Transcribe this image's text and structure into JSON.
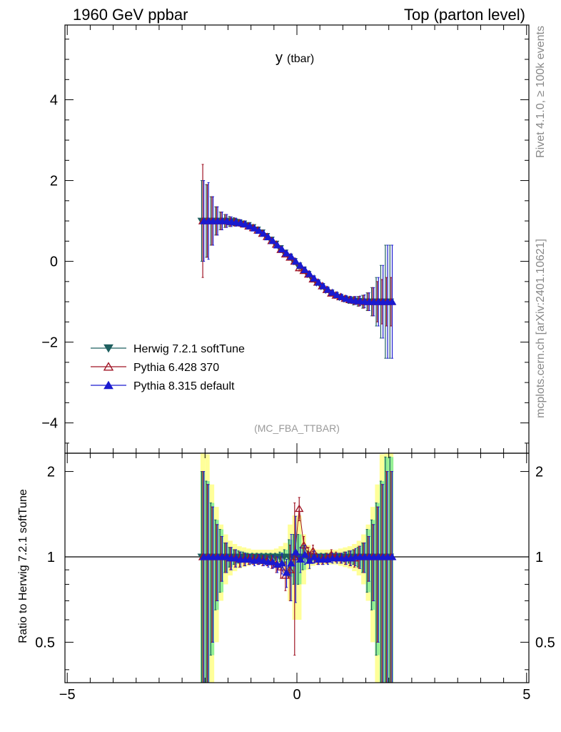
{
  "header": {
    "left_label": "1960 GeV ppbar",
    "right_label": "Top (parton level)"
  },
  "side_labels": {
    "rivet": "Rivet 4.1.0, ≥ 100k events",
    "mcplots": "mcplots.cern.ch [arXiv:2401.10621]"
  },
  "plot_title": {
    "main": "y",
    "sub": "(tbar)"
  },
  "analysis_tag": "(MC_FBA_TTBAR)",
  "ratio_ylabel": "Ratio to Herwig 7.2.1 softTune",
  "colors": {
    "herwig": "#1e5f5f",
    "pythia6": "#a01525",
    "pythia8": "#1a1ad0",
    "band_inner": "#94ef94",
    "band_outer": "#ffff99",
    "axis": "#000000"
  },
  "chart_data": {
    "type": "scatter",
    "xlim": [
      -5.05,
      5.05
    ],
    "main_ylim": [
      -4.75,
      5.85
    ],
    "main_yticks": [
      -4,
      -2,
      0,
      2,
      4
    ],
    "ratio_ylim": [
      0.36,
      2.32
    ],
    "ratio_yticks": [
      0.5,
      1,
      2
    ],
    "xticks": [
      -5,
      0,
      5
    ],
    "x_range": [
      -2.1,
      2.1
    ],
    "bins": 42,
    "legend": [
      {
        "name": "Herwig 7.2.1 softTune",
        "marker": "triangle-down-filled"
      },
      {
        "name": "Pythia 6.428 370",
        "marker": "triangle-up-open"
      },
      {
        "name": "Pythia 8.315 default",
        "marker": "triangle-up-filled"
      }
    ],
    "series": [
      {
        "name": "Herwig 7.2.1 softTune",
        "values": [
          1.0,
          1.0,
          1.0,
          1.0,
          1.0,
          1.0,
          0.99,
          0.98,
          0.96,
          0.93,
          0.89,
          0.84,
          0.78,
          0.71,
          0.62,
          0.53,
          0.43,
          0.32,
          0.21,
          0.11,
          0.0,
          -0.11,
          -0.21,
          -0.32,
          -0.43,
          -0.53,
          -0.62,
          -0.71,
          -0.78,
          -0.84,
          -0.89,
          -0.93,
          -0.96,
          -0.98,
          -0.99,
          -1.0,
          -1.0,
          -1.0,
          -1.0,
          -1.0,
          -1.0,
          -1.0
        ],
        "errors": [
          1.0,
          0.9,
          0.6,
          0.35,
          0.22,
          0.16,
          0.12,
          0.1,
          0.08,
          0.07,
          0.06,
          0.05,
          0.05,
          0.04,
          0.04,
          0.04,
          0.04,
          0.04,
          0.04,
          0.05,
          0.05,
          0.05,
          0.04,
          0.04,
          0.04,
          0.04,
          0.04,
          0.04,
          0.05,
          0.05,
          0.06,
          0.07,
          0.08,
          0.1,
          0.12,
          0.16,
          0.22,
          0.35,
          0.6,
          0.9,
          1.4,
          1.4
        ]
      },
      {
        "name": "Pythia 6.428 370",
        "values": [
          1.0,
          1.0,
          1.0,
          1.0,
          1.0,
          1.0,
          0.98,
          0.97,
          0.95,
          0.92,
          0.87,
          0.83,
          0.77,
          0.69,
          0.61,
          0.51,
          0.42,
          0.29,
          0.18,
          0.1,
          0.0,
          -0.16,
          -0.23,
          -0.32,
          -0.44,
          -0.52,
          -0.61,
          -0.7,
          -0.79,
          -0.84,
          -0.88,
          -0.92,
          -0.95,
          -0.97,
          -0.99,
          -1.0,
          -1.0,
          -1.0,
          -1.0,
          -1.0,
          -1.0,
          -1.0
        ],
        "errors": [
          1.4,
          0.9,
          0.6,
          0.35,
          0.22,
          0.16,
          0.12,
          0.1,
          0.08,
          0.07,
          0.06,
          0.05,
          0.05,
          0.04,
          0.04,
          0.04,
          0.04,
          0.04,
          0.04,
          0.05,
          0.08,
          0.08,
          0.04,
          0.04,
          0.04,
          0.04,
          0.04,
          0.04,
          0.05,
          0.05,
          0.06,
          0.07,
          0.08,
          0.1,
          0.12,
          0.16,
          0.22,
          0.35,
          0.5,
          0.55,
          0.6,
          0.6
        ]
      },
      {
        "name": "Pythia 8.315 default",
        "values": [
          1.0,
          1.0,
          1.0,
          1.0,
          1.0,
          1.0,
          0.98,
          0.97,
          0.95,
          0.92,
          0.87,
          0.82,
          0.76,
          0.69,
          0.6,
          0.51,
          0.4,
          0.3,
          0.2,
          0.12,
          0.0,
          -0.1,
          -0.21,
          -0.31,
          -0.42,
          -0.52,
          -0.61,
          -0.7,
          -0.77,
          -0.83,
          -0.88,
          -0.92,
          -0.95,
          -0.97,
          -0.98,
          -0.99,
          -1.0,
          -1.0,
          -1.0,
          -1.0,
          -1.0,
          -1.0
        ],
        "errors": [
          1.0,
          0.95,
          0.6,
          0.35,
          0.22,
          0.16,
          0.12,
          0.1,
          0.08,
          0.07,
          0.06,
          0.05,
          0.05,
          0.04,
          0.04,
          0.04,
          0.04,
          0.04,
          0.04,
          0.05,
          0.05,
          0.05,
          0.04,
          0.04,
          0.04,
          0.04,
          0.04,
          0.04,
          0.05,
          0.05,
          0.06,
          0.07,
          0.08,
          0.1,
          0.12,
          0.16,
          0.22,
          0.35,
          0.6,
          0.9,
          1.4,
          1.4
        ]
      }
    ],
    "ratio": {
      "band_inner_halfwidth": [
        1.0,
        0.85,
        0.55,
        0.35,
        0.25,
        0.12,
        0.08,
        0.06,
        0.05,
        0.04,
        0.03,
        0.03,
        0.03,
        0.03,
        0.03,
        0.03,
        0.03,
        0.04,
        0.06,
        0.15,
        0.2,
        0.2,
        0.1,
        0.05,
        0.03,
        0.03,
        0.03,
        0.03,
        0.03,
        0.03,
        0.03,
        0.04,
        0.05,
        0.06,
        0.08,
        0.12,
        0.25,
        0.35,
        0.55,
        0.85,
        1.25,
        1.25
      ],
      "band_outer_halfwidth": [
        1.6,
        1.3,
        0.8,
        0.5,
        0.3,
        0.2,
        0.14,
        0.11,
        0.09,
        0.08,
        0.07,
        0.06,
        0.06,
        0.06,
        0.06,
        0.06,
        0.07,
        0.09,
        0.12,
        0.3,
        0.4,
        0.4,
        0.2,
        0.1,
        0.07,
        0.06,
        0.06,
        0.06,
        0.06,
        0.06,
        0.07,
        0.08,
        0.09,
        0.11,
        0.14,
        0.2,
        0.3,
        0.5,
        0.8,
        1.3,
        1.6,
        1.6
      ],
      "pythia6": [
        1.0,
        1.0,
        1.0,
        1.0,
        1.0,
        1.0,
        0.99,
        0.99,
        0.98,
        0.98,
        0.98,
        0.98,
        0.98,
        0.97,
        0.97,
        0.96,
        0.94,
        0.92,
        0.86,
        0.9,
        1.0,
        1.48,
        1.1,
        1.02,
        1.05,
        0.98,
        0.98,
        0.99,
        1.02,
        1.0,
        0.99,
        0.99,
        0.99,
        0.99,
        1.0,
        1.0,
        1.0,
        1.0,
        1.0,
        1.0,
        1.0,
        1.0
      ],
      "pythia6_err": [
        1.0,
        0.8,
        0.5,
        0.3,
        0.18,
        0.12,
        0.09,
        0.07,
        0.06,
        0.05,
        0.04,
        0.04,
        0.04,
        0.04,
        0.04,
        0.05,
        0.06,
        0.08,
        0.1,
        0.2,
        0.55,
        0.14,
        0.08,
        0.06,
        0.05,
        0.04,
        0.04,
        0.04,
        0.04,
        0.04,
        0.04,
        0.05,
        0.06,
        0.07,
        0.09,
        0.12,
        0.18,
        0.3,
        0.5,
        0.8,
        1.0,
        1.0
      ],
      "pythia8": [
        1.0,
        1.0,
        1.0,
        1.0,
        1.0,
        1.0,
        0.99,
        0.99,
        0.98,
        0.98,
        0.98,
        0.97,
        0.98,
        0.97,
        0.96,
        0.96,
        0.94,
        0.95,
        0.88,
        0.95,
        1.04,
        0.98,
        1.02,
        0.97,
        1.0,
        0.98,
        0.98,
        0.98,
        0.99,
        0.99,
        0.99,
        0.99,
        0.99,
        1.0,
        1.0,
        1.0,
        1.0,
        1.0,
        1.0,
        1.0,
        1.0,
        1.0
      ],
      "pythia8_err": [
        1.0,
        0.8,
        0.5,
        0.3,
        0.18,
        0.12,
        0.09,
        0.07,
        0.06,
        0.05,
        0.04,
        0.04,
        0.04,
        0.04,
        0.04,
        0.05,
        0.06,
        0.08,
        0.1,
        0.25,
        0.35,
        0.1,
        0.08,
        0.06,
        0.05,
        0.04,
        0.04,
        0.04,
        0.04,
        0.04,
        0.04,
        0.05,
        0.06,
        0.07,
        0.09,
        0.12,
        0.18,
        0.3,
        0.5,
        0.8,
        1.0,
        1.0
      ]
    }
  }
}
